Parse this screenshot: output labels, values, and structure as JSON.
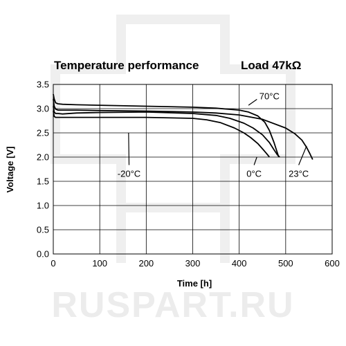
{
  "watermark": {
    "text": "RUSPART.RU",
    "color": "#ececec"
  },
  "chart_data": {
    "type": "line",
    "title": "Temperature performance",
    "subtitle": "Load 47kΩ",
    "xlabel": "Time [h]",
    "ylabel": "Voltage [V]",
    "xlim": [
      0,
      600
    ],
    "ylim": [
      0,
      3.5
    ],
    "xticks": [
      0,
      100,
      200,
      300,
      400,
      500,
      600
    ],
    "yticks": [
      "0.0",
      "0.5",
      "1.0",
      "1.5",
      "2.0",
      "2.5",
      "3.0",
      "3.5"
    ],
    "grid": true,
    "line_color": "#000000",
    "series": [
      {
        "name": "70°C",
        "x": [
          0,
          2,
          5,
          10,
          20,
          50,
          100,
          200,
          300,
          350,
          400,
          420,
          440,
          455,
          465,
          475,
          480,
          485
        ],
        "y": [
          3.3,
          3.2,
          3.12,
          3.1,
          3.09,
          3.08,
          3.07,
          3.05,
          3.03,
          3.01,
          2.97,
          2.93,
          2.85,
          2.72,
          2.55,
          2.3,
          2.15,
          2.0
        ]
      },
      {
        "name": "23°C",
        "x": [
          0,
          2,
          5,
          10,
          20,
          50,
          100,
          200,
          300,
          350,
          400,
          450,
          500,
          520,
          535,
          545,
          552,
          558
        ],
        "y": [
          3.2,
          3.05,
          2.99,
          2.97,
          2.97,
          2.97,
          2.96,
          2.95,
          2.93,
          2.91,
          2.87,
          2.78,
          2.6,
          2.48,
          2.35,
          2.2,
          2.07,
          1.95
        ]
      },
      {
        "name": "0°C",
        "x": [
          0,
          2,
          5,
          10,
          20,
          50,
          100,
          200,
          300,
          350,
          380,
          410,
          430,
          450,
          465,
          475,
          482,
          487
        ],
        "y": [
          3.05,
          2.93,
          2.9,
          2.9,
          2.89,
          2.91,
          2.92,
          2.93,
          2.9,
          2.86,
          2.8,
          2.7,
          2.6,
          2.46,
          2.3,
          2.15,
          2.05,
          2.0
        ]
      },
      {
        "name": "-20°C",
        "x": [
          0,
          2,
          5,
          10,
          20,
          50,
          100,
          200,
          300,
          330,
          360,
          390,
          410,
          425,
          440,
          452,
          460,
          465
        ],
        "y": [
          2.95,
          2.84,
          2.82,
          2.82,
          2.82,
          2.82,
          2.82,
          2.82,
          2.8,
          2.77,
          2.71,
          2.6,
          2.5,
          2.4,
          2.28,
          2.15,
          2.06,
          2.0
        ]
      }
    ],
    "annotations": [
      {
        "text": "70°C",
        "x": 465,
        "y": 3.25,
        "point_x": 420,
        "point_y": 3.07
      },
      {
        "text": "-20°C",
        "x": 163,
        "y": 1.65,
        "point_x": 162,
        "point_y": 2.5
      },
      {
        "text": "0°C",
        "x": 432,
        "y": 1.65,
        "point_x": 438,
        "point_y": 2.0
      },
      {
        "text": "23°C",
        "x": 528,
        "y": 1.65,
        "point_x": 545,
        "point_y": 2.23
      }
    ]
  }
}
